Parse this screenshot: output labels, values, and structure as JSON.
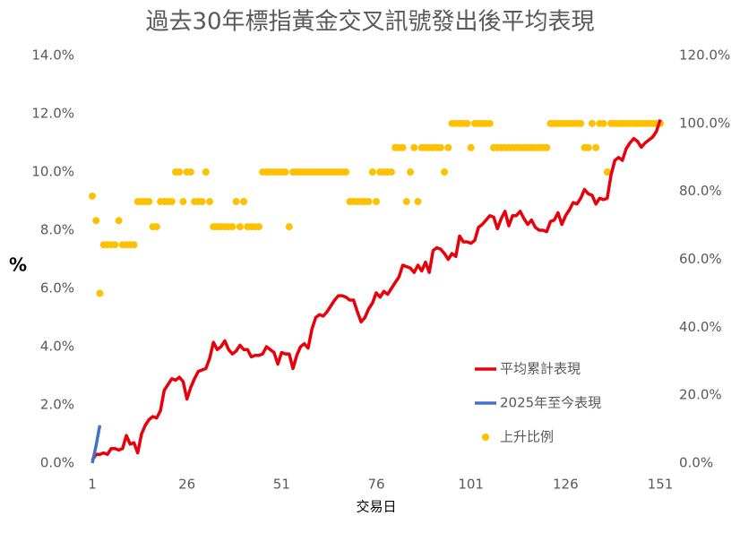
{
  "chart_data": {
    "type": "line",
    "title": "過去30年標指黃金交叉訊號發出後平均表現",
    "y_label": "%",
    "x_label": "交易日",
    "x": [
      1,
      2,
      3,
      4,
      5,
      6,
      7,
      8,
      9,
      10,
      11,
      12,
      13,
      14,
      15,
      16,
      17,
      18,
      19,
      20,
      21,
      22,
      23,
      24,
      25,
      26,
      27,
      28,
      29,
      30,
      31,
      32,
      33,
      34,
      35,
      36,
      37,
      38,
      39,
      40,
      41,
      42,
      43,
      44,
      45,
      46,
      47,
      48,
      49,
      50,
      51,
      52,
      53,
      54,
      55,
      56,
      57,
      58,
      59,
      60,
      61,
      62,
      63,
      64,
      65,
      66,
      67,
      68,
      69,
      70,
      71,
      72,
      73,
      74,
      75,
      76,
      77,
      78,
      79,
      80,
      81,
      82,
      83,
      84,
      85,
      86,
      87,
      88,
      89,
      90,
      91,
      92,
      93,
      94,
      95,
      96,
      97,
      98,
      99,
      100,
      101,
      102,
      103,
      104,
      105,
      106,
      107,
      108,
      109,
      110,
      111,
      112,
      113,
      114,
      115,
      116,
      117,
      118,
      119,
      120,
      121,
      122,
      123,
      124,
      125,
      126,
      127,
      128,
      129,
      130,
      131,
      132,
      133,
      134,
      135,
      136,
      137,
      138,
      139,
      140,
      141,
      142,
      143,
      144,
      145,
      146,
      147,
      148,
      149,
      150,
      151
    ],
    "xlim": [
      1,
      151
    ],
    "xticks": [
      1,
      26,
      51,
      76,
      101,
      126,
      151
    ],
    "ylim": [
      0,
      14
    ],
    "yticks": [
      {
        "value": 0,
        "label": "0.0%"
      },
      {
        "value": 2,
        "label": "2.0%"
      },
      {
        "value": 4,
        "label": "4.0%"
      },
      {
        "value": 6,
        "label": "6.0%"
      },
      {
        "value": 8,
        "label": "8.0%"
      },
      {
        "value": 10,
        "label": "10.0%"
      },
      {
        "value": 12,
        "label": "12.0%"
      },
      {
        "value": 14,
        "label": "14.0%"
      }
    ],
    "y2lim": [
      0,
      120
    ],
    "y2ticks": [
      {
        "value": 0,
        "label": "0.0%"
      },
      {
        "value": 20,
        "label": "20.0%"
      },
      {
        "value": 40,
        "label": "40.0%"
      },
      {
        "value": 60,
        "label": "60.0%"
      },
      {
        "value": 80,
        "label": "80.0%"
      },
      {
        "value": 100,
        "label": "100.0%"
      },
      {
        "value": 120,
        "label": "120.0%"
      }
    ],
    "legend": "lower right",
    "series": [
      {
        "name": "平均累計表現",
        "type": "line",
        "color": "#e8000b",
        "values": [
          0.1,
          0.3,
          0.3,
          0.35,
          0.3,
          0.5,
          0.5,
          0.45,
          0.5,
          0.95,
          0.65,
          0.7,
          0.35,
          1.0,
          1.3,
          1.5,
          1.6,
          1.55,
          1.8,
          2.5,
          2.7,
          2.9,
          2.85,
          2.95,
          2.8,
          2.2,
          2.6,
          2.9,
          3.15,
          3.2,
          3.25,
          3.6,
          4.15,
          3.9,
          4.0,
          4.2,
          3.9,
          3.75,
          3.85,
          4.05,
          3.9,
          3.9,
          3.65,
          3.7,
          3.7,
          3.75,
          4.0,
          3.9,
          3.8,
          3.4,
          3.8,
          3.75,
          3.75,
          3.25,
          3.7,
          4.0,
          4.1,
          3.95,
          4.6,
          5.0,
          5.1,
          5.05,
          5.2,
          5.4,
          5.6,
          5.75,
          5.75,
          5.7,
          5.6,
          5.6,
          5.2,
          4.85,
          5.0,
          5.3,
          5.5,
          5.85,
          5.7,
          5.9,
          5.8,
          6.0,
          6.2,
          6.4,
          6.8,
          6.75,
          6.7,
          6.55,
          6.8,
          6.6,
          6.9,
          6.55,
          7.3,
          7.4,
          7.35,
          7.2,
          7.0,
          7.2,
          7.1,
          7.8,
          7.6,
          7.6,
          7.55,
          7.65,
          8.1,
          8.2,
          8.35,
          8.5,
          8.45,
          8.05,
          8.4,
          8.65,
          8.15,
          8.5,
          8.5,
          8.65,
          8.4,
          8.2,
          8.35,
          8.1,
          8.0,
          8.0,
          7.95,
          8.3,
          8.35,
          8.6,
          8.2,
          8.5,
          8.7,
          8.95,
          8.9,
          9.1,
          9.4,
          9.25,
          9.2,
          8.9,
          9.1,
          9.05,
          9.1,
          9.9,
          10.4,
          10.5,
          10.4,
          10.8,
          11.0,
          11.15,
          11.05,
          10.85,
          11.0,
          11.1,
          11.2,
          11.4,
          11.8
        ]
      },
      {
        "name": "2025年至今表現",
        "type": "line",
        "color": "#4472c4",
        "x": [
          1,
          2,
          3
        ],
        "values": [
          0,
          0.6,
          1.3
        ]
      },
      {
        "name": "上升比例",
        "type": "scatter",
        "color": "#ffc000",
        "axis": "y2",
        "values": [
          78.6,
          71.4,
          50,
          64.3,
          64.3,
          64.3,
          64.3,
          71.4,
          64.3,
          64.3,
          64.3,
          64.3,
          77,
          77,
          77,
          77,
          69.6,
          69.6,
          77,
          77,
          77,
          77,
          85.7,
          85.7,
          77,
          85.7,
          85.7,
          77,
          77,
          77,
          85.7,
          77,
          69.6,
          69.6,
          69.6,
          69.6,
          69.6,
          69.6,
          77,
          69.6,
          77,
          69.6,
          69.6,
          69.6,
          69.6,
          85.7,
          85.7,
          85.7,
          85.7,
          85.7,
          85.7,
          85.7,
          69.6,
          85.7,
          85.7,
          85.7,
          85.7,
          85.7,
          85.7,
          85.7,
          85.7,
          85.7,
          85.7,
          85.7,
          85.7,
          85.7,
          85.7,
          85.7,
          77,
          77,
          77,
          77,
          77,
          77,
          85.7,
          77,
          85.7,
          85.7,
          85.7,
          85.7,
          92.9,
          92.9,
          92.9,
          77,
          85.7,
          92.9,
          77,
          92.9,
          92.9,
          92.9,
          92.9,
          92.9,
          92.9,
          85.7,
          92.9,
          100,
          100,
          100,
          100,
          100,
          92.9,
          100,
          100,
          100,
          100,
          100,
          92.9,
          92.9,
          92.9,
          92.9,
          92.9,
          92.9,
          92.9,
          92.9,
          92.9,
          92.9,
          92.9,
          92.9,
          92.9,
          92.9,
          92.9,
          100,
          100,
          100,
          100,
          100,
          100,
          100,
          100,
          100,
          92.9,
          92.9,
          100,
          92.9,
          100,
          100,
          85.7,
          100,
          100,
          100,
          100,
          100,
          100,
          100,
          100,
          100,
          100,
          100,
          100,
          100,
          100
        ]
      }
    ]
  }
}
